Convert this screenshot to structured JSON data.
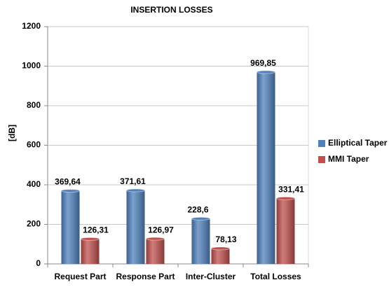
{
  "chart_data": {
    "type": "bar",
    "title": "INSERTION LOSSES",
    "y_label": "[dB]",
    "categories": [
      "Request Part",
      "Response Part",
      "Inter-Cluster",
      "Total Losses"
    ],
    "series": [
      {
        "name": "Elliptical Taper",
        "color": "#4f81bd",
        "values": [
          369.64,
          371.61,
          228.6,
          969.85
        ],
        "value_labels": [
          "369,64",
          "371,61",
          "228,6",
          "969,85"
        ]
      },
      {
        "name": "MMI Taper",
        "color": "#c0504d",
        "values": [
          126.31,
          126.97,
          78.13,
          331.41
        ],
        "value_labels": [
          "126,31",
          "126,97",
          "78,13",
          "331,41"
        ]
      }
    ],
    "ylim": [
      0,
      1200
    ],
    "yticks": [
      0,
      200,
      400,
      600,
      800,
      1000,
      1200
    ],
    "grid": true,
    "legend": "right"
  }
}
